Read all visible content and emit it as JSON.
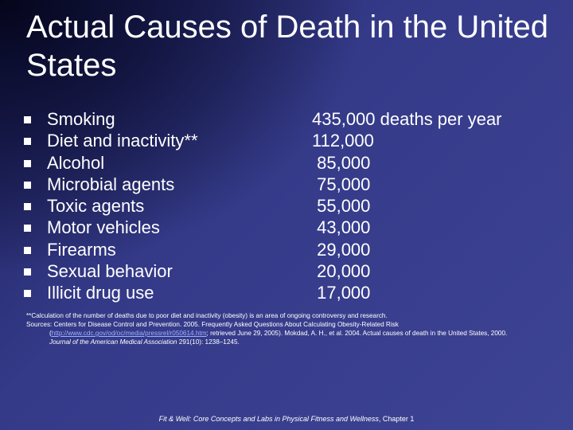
{
  "slide": {
    "title": "Actual Causes of Death in the United States",
    "items": [
      {
        "cause": "Smoking",
        "deaths": "435,000 deaths per year"
      },
      {
        "cause": "Diet and inactivity**",
        "deaths": "112,000"
      },
      {
        "cause": "Alcohol",
        "deaths": " 85,000"
      },
      {
        "cause": "Microbial agents",
        "deaths": " 75,000"
      },
      {
        "cause": "Toxic agents",
        "deaths": " 55,000"
      },
      {
        "cause": "Motor vehicles",
        "deaths": " 43,000"
      },
      {
        "cause": "Firearms",
        "deaths": " 29,000"
      },
      {
        "cause": "Sexual behavior",
        "deaths": " 20,000"
      },
      {
        "cause": "Illicit drug use",
        "deaths": " 17,000"
      }
    ],
    "notes": {
      "asterisk": "**Calculation of the number of deaths due to poor diet and inactivity (obesity) is an area of ongoing controversy and research.",
      "sources_lead": "Sources: Centers for Disease Control and Prevention. 2005. Frequently Asked Questions About Calculating Obesity-Related Risk",
      "sources_open": "(",
      "sources_link": "http://www.cdc.gov/od/oc/media/pressrel/r050614.htm",
      "sources_rest": "; retrieved June 29, 2005). Mokdad, A. H., et al. 2004. Actual causes of death in the United States, 2000.",
      "journal": "Journal of the American Medical Association",
      "journal_rest": " 291(10): 1238–1245."
    },
    "footer": {
      "book": "Fit & Well: Core Concepts and Labs in Physical Fitness and Wellness",
      "chapter": ", Chapter 1"
    }
  }
}
